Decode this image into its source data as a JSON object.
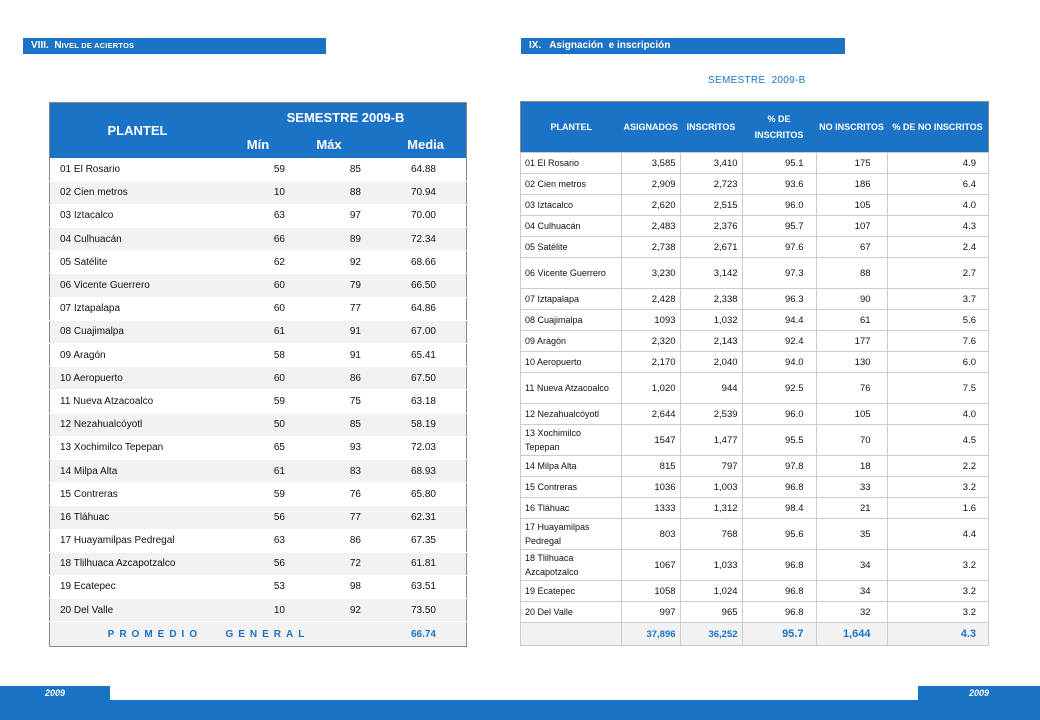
{
  "section8": {
    "num": "VIII.",
    "title_initial": "N",
    "title_rest": "IVEL DE ACIERTOS"
  },
  "section9": {
    "title": "IX.   Asignación  e inscripción"
  },
  "semester_caption": "SEMESTRE  2009-B",
  "table1": {
    "header_plantel": "PLANTEL",
    "header_semestre": "SEMESTRE 2009-B",
    "header_min": "Mín",
    "header_max": "Máx",
    "header_media": "Media",
    "rows": [
      {
        "name": "01 El Rosario",
        "min": "59",
        "max": "85",
        "media": "64.88"
      },
      {
        "name": "02 Cien metros",
        "min": "10",
        "max": "88",
        "media": "70.94"
      },
      {
        "name": "03 Iztacalco",
        "min": "63",
        "max": "97",
        "media": "70.00"
      },
      {
        "name": "04 Culhuacán",
        "min": "66",
        "max": "89",
        "media": "72.34"
      },
      {
        "name": "05 Satélite",
        "min": "62",
        "max": "92",
        "media": "68.66"
      },
      {
        "name": "06 Vicente Guerrero",
        "min": "60",
        "max": "79",
        "media": "66.50"
      },
      {
        "name": "07 Iztapalapa",
        "min": "60",
        "max": "77",
        "media": "64.86"
      },
      {
        "name": "08 Cuajimalpa",
        "min": "61",
        "max": "91",
        "media": "67.00"
      },
      {
        "name": "09 Aragón",
        "min": "58",
        "max": "91",
        "media": "65.41"
      },
      {
        "name": "10 Aeropuerto",
        "min": "60",
        "max": "86",
        "media": "67.50"
      },
      {
        "name": "11 Nueva Atzacoalco",
        "min": "59",
        "max": "75",
        "media": "63.18"
      },
      {
        "name": "12 Nezahualcóyotl",
        "min": "50",
        "max": "85",
        "media": "58.19"
      },
      {
        "name": "13 Xochimilco  Tepepan",
        "min": "65",
        "max": "93",
        "media": "72.03"
      },
      {
        "name": "14 Milpa Alta",
        "min": "61",
        "max": "83",
        "media": "68.93"
      },
      {
        "name": "15 Contreras",
        "min": "59",
        "max": "76",
        "media": "65.80"
      },
      {
        "name": "16 Tláhuac",
        "min": "56",
        "max": "77",
        "media": "62.31"
      },
      {
        "name": "17 Huayamilpas  Pedregal",
        "min": "63",
        "max": "86",
        "media": "67.35"
      },
      {
        "name": "18 Tlilhuaca  Azcapotzalco",
        "min": "56",
        "max": "72",
        "media": "61.81"
      },
      {
        "name": "19 Ecatepec",
        "min": "53",
        "max": "98",
        "media": "63.51"
      },
      {
        "name": "20 Del Valle",
        "min": "10",
        "max": "92",
        "media": "73.50"
      }
    ],
    "avg_label": "PROMEDIO   GENERAL",
    "avg_value": "66.74"
  },
  "table2": {
    "headers": [
      "PLANTEL",
      "ASIGNADOS",
      "INSCRITOS",
      "% DE INSCRITOS",
      "NO INSCRITOS",
      "% DE NO INSCRITOS"
    ],
    "rows": [
      {
        "name": "01 El Rosario",
        "asig": "3,585",
        "ins": "3,410",
        "pct": "95.1",
        "no": "175",
        "pno": "4.9"
      },
      {
        "name": "02 Cien metros",
        "asig": "2,909",
        "ins": "2,723",
        "pct": "93.6",
        "no": "186",
        "pno": "6.4"
      },
      {
        "name": "03 Iztacalco",
        "asig": "2,620",
        "ins": "2,515",
        "pct": "96.0",
        "no": "105",
        "pno": "4.0"
      },
      {
        "name": "04 Culhuacán",
        "asig": "2,483",
        "ins": "2,376",
        "pct": "95.7",
        "no": "107",
        "pno": "4.3"
      },
      {
        "name": "05 Satélite",
        "asig": "2,738",
        "ins": "2,671",
        "pct": "97.6",
        "no": "67",
        "pno": "2.4"
      },
      {
        "name": "06 Vicente Guerrero",
        "asig": "3,230",
        "ins": "3,142",
        "pct": "97.3",
        "no": "88",
        "pno": "2.7"
      },
      {
        "name": "07 Iztapalapa",
        "asig": "2,428",
        "ins": "2,338",
        "pct": "96.3",
        "no": "90",
        "pno": "3.7"
      },
      {
        "name": "08 Cuajimalpa",
        "asig": "1093",
        "ins": "1,032",
        "pct": "94.4",
        "no": "61",
        "pno": "5.6"
      },
      {
        "name": "09 Aragón",
        "asig": "2,320",
        "ins": "2,143",
        "pct": "92.4",
        "no": "177",
        "pno": "7.6"
      },
      {
        "name": "10 Aeropuerto",
        "asig": "2,170",
        "ins": "2,040",
        "pct": "94.0",
        "no": "130",
        "pno": "6.0"
      },
      {
        "name": "11 Nueva Atzacoalco",
        "asig": "1,020",
        "ins": "944",
        "pct": "92.5",
        "no": "76",
        "pno": "7.5"
      },
      {
        "name": "12 Nezahualcóyotl",
        "asig": "2,644",
        "ins": "2,539",
        "pct": "96.0",
        "no": "105",
        "pno": "4.0"
      },
      {
        "name": "13 Xochimilco Tepepan",
        "asig": "1547",
        "ins": "1,477",
        "pct": "95.5",
        "no": "70",
        "pno": "4.5"
      },
      {
        "name": "14 Milpa Alta",
        "asig": "815",
        "ins": "797",
        "pct": "97.8",
        "no": "18",
        "pno": "2.2"
      },
      {
        "name": "15 Contreras",
        "asig": "1036",
        "ins": "1,003",
        "pct": "96.8",
        "no": "33",
        "pno": "3.2"
      },
      {
        "name": "16 Tláhuac",
        "asig": "1333",
        "ins": "1,312",
        "pct": "98.4",
        "no": "21",
        "pno": "1.6"
      },
      {
        "name": "17 Huayamilpas Pedregal",
        "asig": "803",
        "ins": "768",
        "pct": "95.6",
        "no": "35",
        "pno": "4.4"
      },
      {
        "name": "18 Tlilhuaca Azcapotzalco",
        "asig": "1067",
        "ins": "1,033",
        "pct": "96.8",
        "no": "34",
        "pno": "3.2"
      },
      {
        "name": "19 Ecatepec",
        "asig": "1058",
        "ins": "1,024",
        "pct": "96.8",
        "no": "34",
        "pno": "3.2"
      },
      {
        "name": "20 Del Valle",
        "asig": "997",
        "ins": "965",
        "pct": "96.8",
        "no": "32",
        "pno": "3.2"
      }
    ],
    "totals": {
      "asig": "37,896",
      "ins": "36,252",
      "pct": "95.7",
      "no": "1,644",
      "pno": "4.3"
    }
  },
  "footer": {
    "year_left": "2009",
    "year_right": "2009"
  },
  "colors": {
    "accent": "#1a73c7",
    "row_alt": "#f2f2f2"
  }
}
